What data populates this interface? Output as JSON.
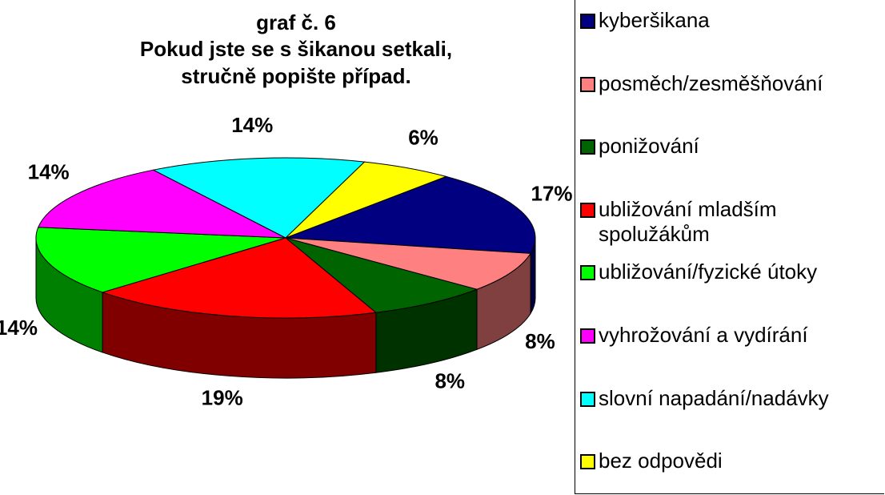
{
  "chart_data": {
    "type": "pie3d",
    "title": [
      "graf č. 6",
      "Pokud jste se s šikanou setkali,",
      "stručně popište případ."
    ],
    "categories": [
      "kyberšikana",
      "posměch/zesměšňování",
      "ponižování",
      "ubližování mladším spolužákům",
      "ubližování/fyzické útoky",
      "vyhrožování a vydírání",
      "slovní napadání/nadávky",
      "bez odpovědi"
    ],
    "values": [
      17,
      8,
      8,
      19,
      14,
      14,
      14,
      6
    ],
    "value_labels": [
      "17%",
      "8%",
      "8%",
      "19%",
      "14%",
      "14%",
      "14%",
      "6%"
    ],
    "colors": [
      "#000080",
      "#ff8080",
      "#006400",
      "#ff0000",
      "#00ff00",
      "#ff00ff",
      "#00ffff",
      "#ffff00"
    ],
    "legend": "right"
  }
}
